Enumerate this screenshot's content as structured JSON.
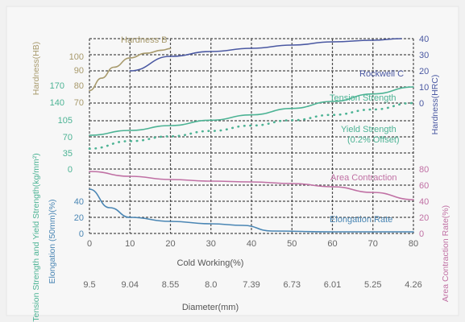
{
  "chart_data": {
    "type": "line",
    "title": "",
    "xlabel": "Cold Working(%)",
    "x_ticks": [
      0,
      10,
      20,
      30,
      40,
      50,
      60,
      70,
      80
    ],
    "xlim": [
      0,
      80
    ],
    "diameter_label": "Diameter(mm)",
    "diameter_ticks": [
      "9.5",
      "9.04",
      "8.55",
      "8.0",
      "7.39",
      "6.73",
      "6.01",
      "5.25",
      "4.26"
    ],
    "y_axes": {
      "left_strength_title": "Tension Strength and Yield Strength(kg/mm²)",
      "left_hardness_title": "Hardness(HB)",
      "left_elongation_title": "Elongation (50mm)(%)",
      "right_hardness_title": "Hardness(HRC)",
      "right_area_title": "Area Contraction Rate(%)",
      "left_hb_ticks": [
        "100",
        "90",
        "80",
        "70"
      ],
      "left_hb_ticks_teal": [
        "170",
        "140"
      ],
      "left_strength_ticks": [
        "105",
        "70",
        "35",
        "0"
      ],
      "left_elongation_ticks": [
        "40",
        "20",
        "0"
      ],
      "right_hrc_ticks": [
        "40",
        "30",
        "20",
        "10",
        "0"
      ],
      "right_area_ticks": [
        "80",
        "60",
        "40",
        "20",
        "0"
      ]
    },
    "series": [
      {
        "name": "Hardness B",
        "color": "#a89a6c",
        "x": [
          0,
          3,
          6,
          10,
          14,
          18,
          20
        ],
        "y": [
          78,
          86,
          93,
          99,
          102,
          104,
          105
        ]
      },
      {
        "name": "Rockwell C",
        "color": "#4a58a2",
        "x": [
          10,
          20,
          30,
          40,
          50,
          60,
          70,
          77
        ],
        "y": [
          20,
          29,
          32,
          34,
          36,
          38,
          39,
          40
        ]
      },
      {
        "name": "Tension Strength",
        "color": "#4cb394",
        "x": [
          0,
          10,
          20,
          30,
          40,
          50,
          60,
          70,
          80
        ],
        "y": [
          63,
          72,
          81,
          91,
          101,
          113,
          126,
          140,
          153
        ]
      },
      {
        "name": "Yield Strength (0.2% Offset)",
        "color": "#4cb394",
        "dotted": true,
        "x": [
          0,
          10,
          20,
          30,
          40,
          50,
          60,
          70,
          80
        ],
        "y": [
          38,
          52,
          61,
          71,
          81,
          91,
          101,
          111,
          123
        ]
      },
      {
        "name": "Area Contraction",
        "color": "#c070a4",
        "x": [
          0,
          10,
          20,
          30,
          40,
          50,
          60,
          70,
          80
        ],
        "y": [
          77,
          71,
          67,
          65,
          64,
          62,
          58,
          51,
          42
        ]
      },
      {
        "name": "Elongation Rate",
        "color": "#4a86b4",
        "x": [
          0,
          5,
          10,
          20,
          30,
          38,
          45,
          60,
          70,
          80
        ],
        "y": [
          55,
          32,
          20,
          15,
          12,
          10,
          3,
          2,
          2,
          2
        ]
      }
    ],
    "grid": true,
    "colors": {
      "hardness": "#a89a6c",
      "rockwell": "#4a58a2",
      "strength": "#4cb394",
      "area": "#c070a4",
      "elongation": "#4a86b4",
      "grid": "#4d4d4d",
      "text": "#666666"
    }
  }
}
